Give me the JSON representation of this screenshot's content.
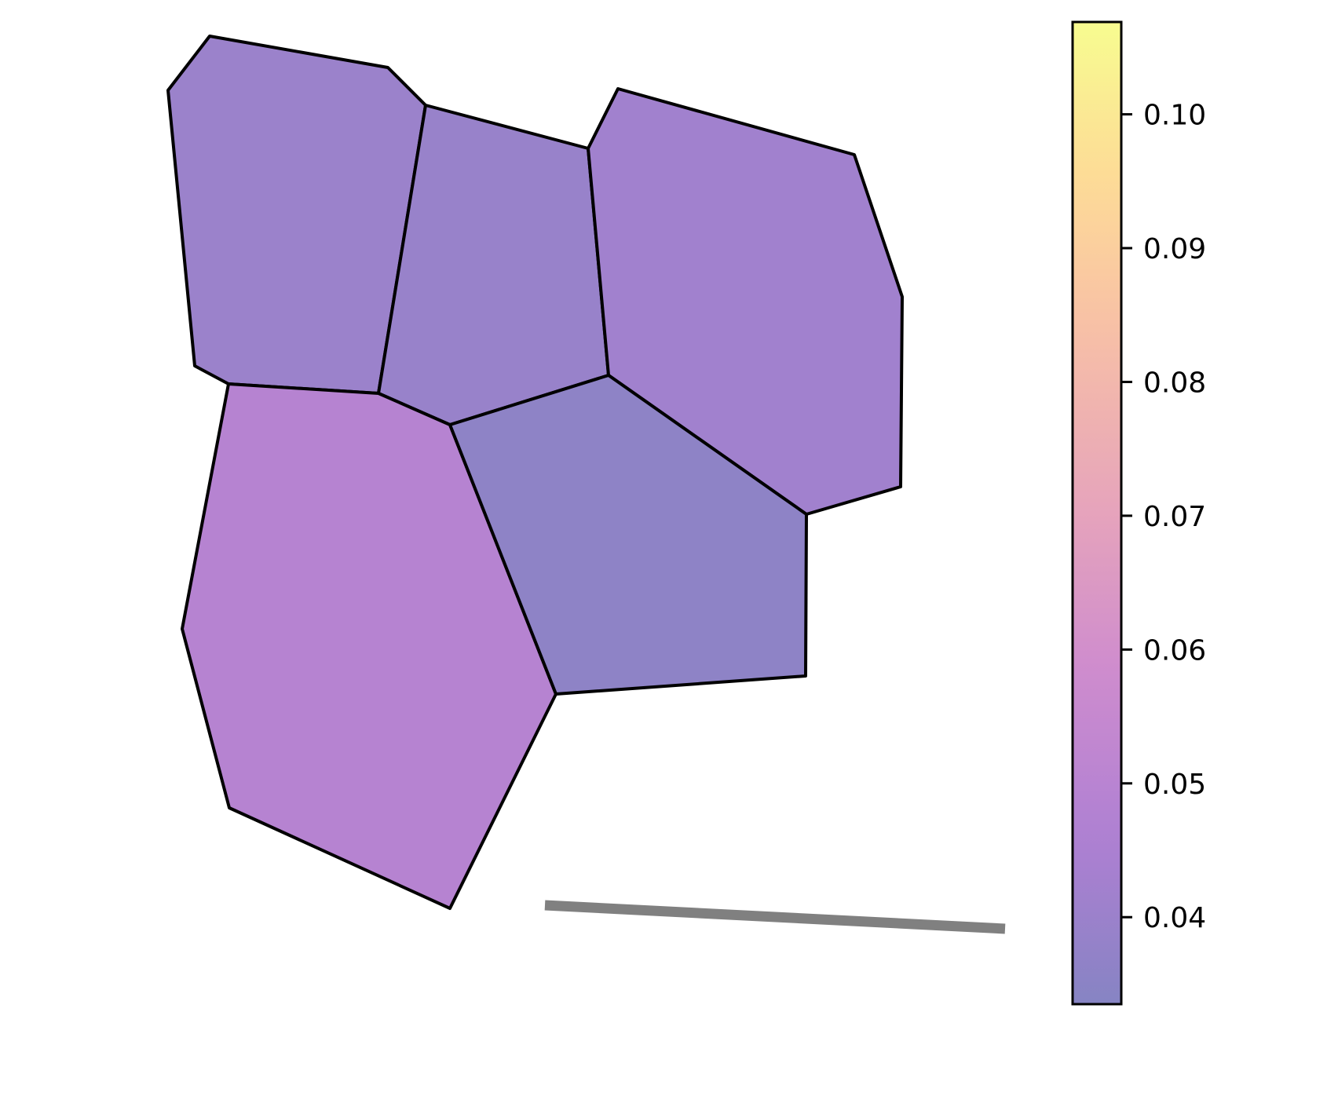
{
  "chart_data": {
    "type": "heatmap",
    "subtype": "polygon cell map (voronoi-like) with colorbar",
    "title": "",
    "axes_visible": false,
    "grid": false,
    "colorbar": {
      "location": "right",
      "range": [
        0.0335,
        0.1069
      ],
      "ticks": [
        0.04,
        0.05,
        0.06,
        0.07,
        0.08,
        0.09,
        0.1
      ],
      "tick_labels": [
        "0.04",
        "0.05",
        "0.06",
        "0.07",
        "0.08",
        "0.09",
        "0.10"
      ],
      "colormap": "plasma",
      "alpha": 0.5
    },
    "cells": [
      {
        "id": "top-left",
        "value": 0.04
      },
      {
        "id": "top-middle",
        "value": 0.039
      },
      {
        "id": "top-right",
        "value": 0.042
      },
      {
        "id": "bottom-left",
        "value": 0.049
      },
      {
        "id": "middle",
        "value": 0.036
      }
    ],
    "annotation": {
      "type": "line",
      "color": "#808080"
    }
  },
  "colors": {
    "cell_edge": "#000000",
    "annotation_line": "#808080",
    "colorbar_stops": [
      "#0d0887",
      "#5c01a6",
      "#9c179e",
      "#cc4778",
      "#ed7953",
      "#fdb42f",
      "#f0f921"
    ]
  }
}
